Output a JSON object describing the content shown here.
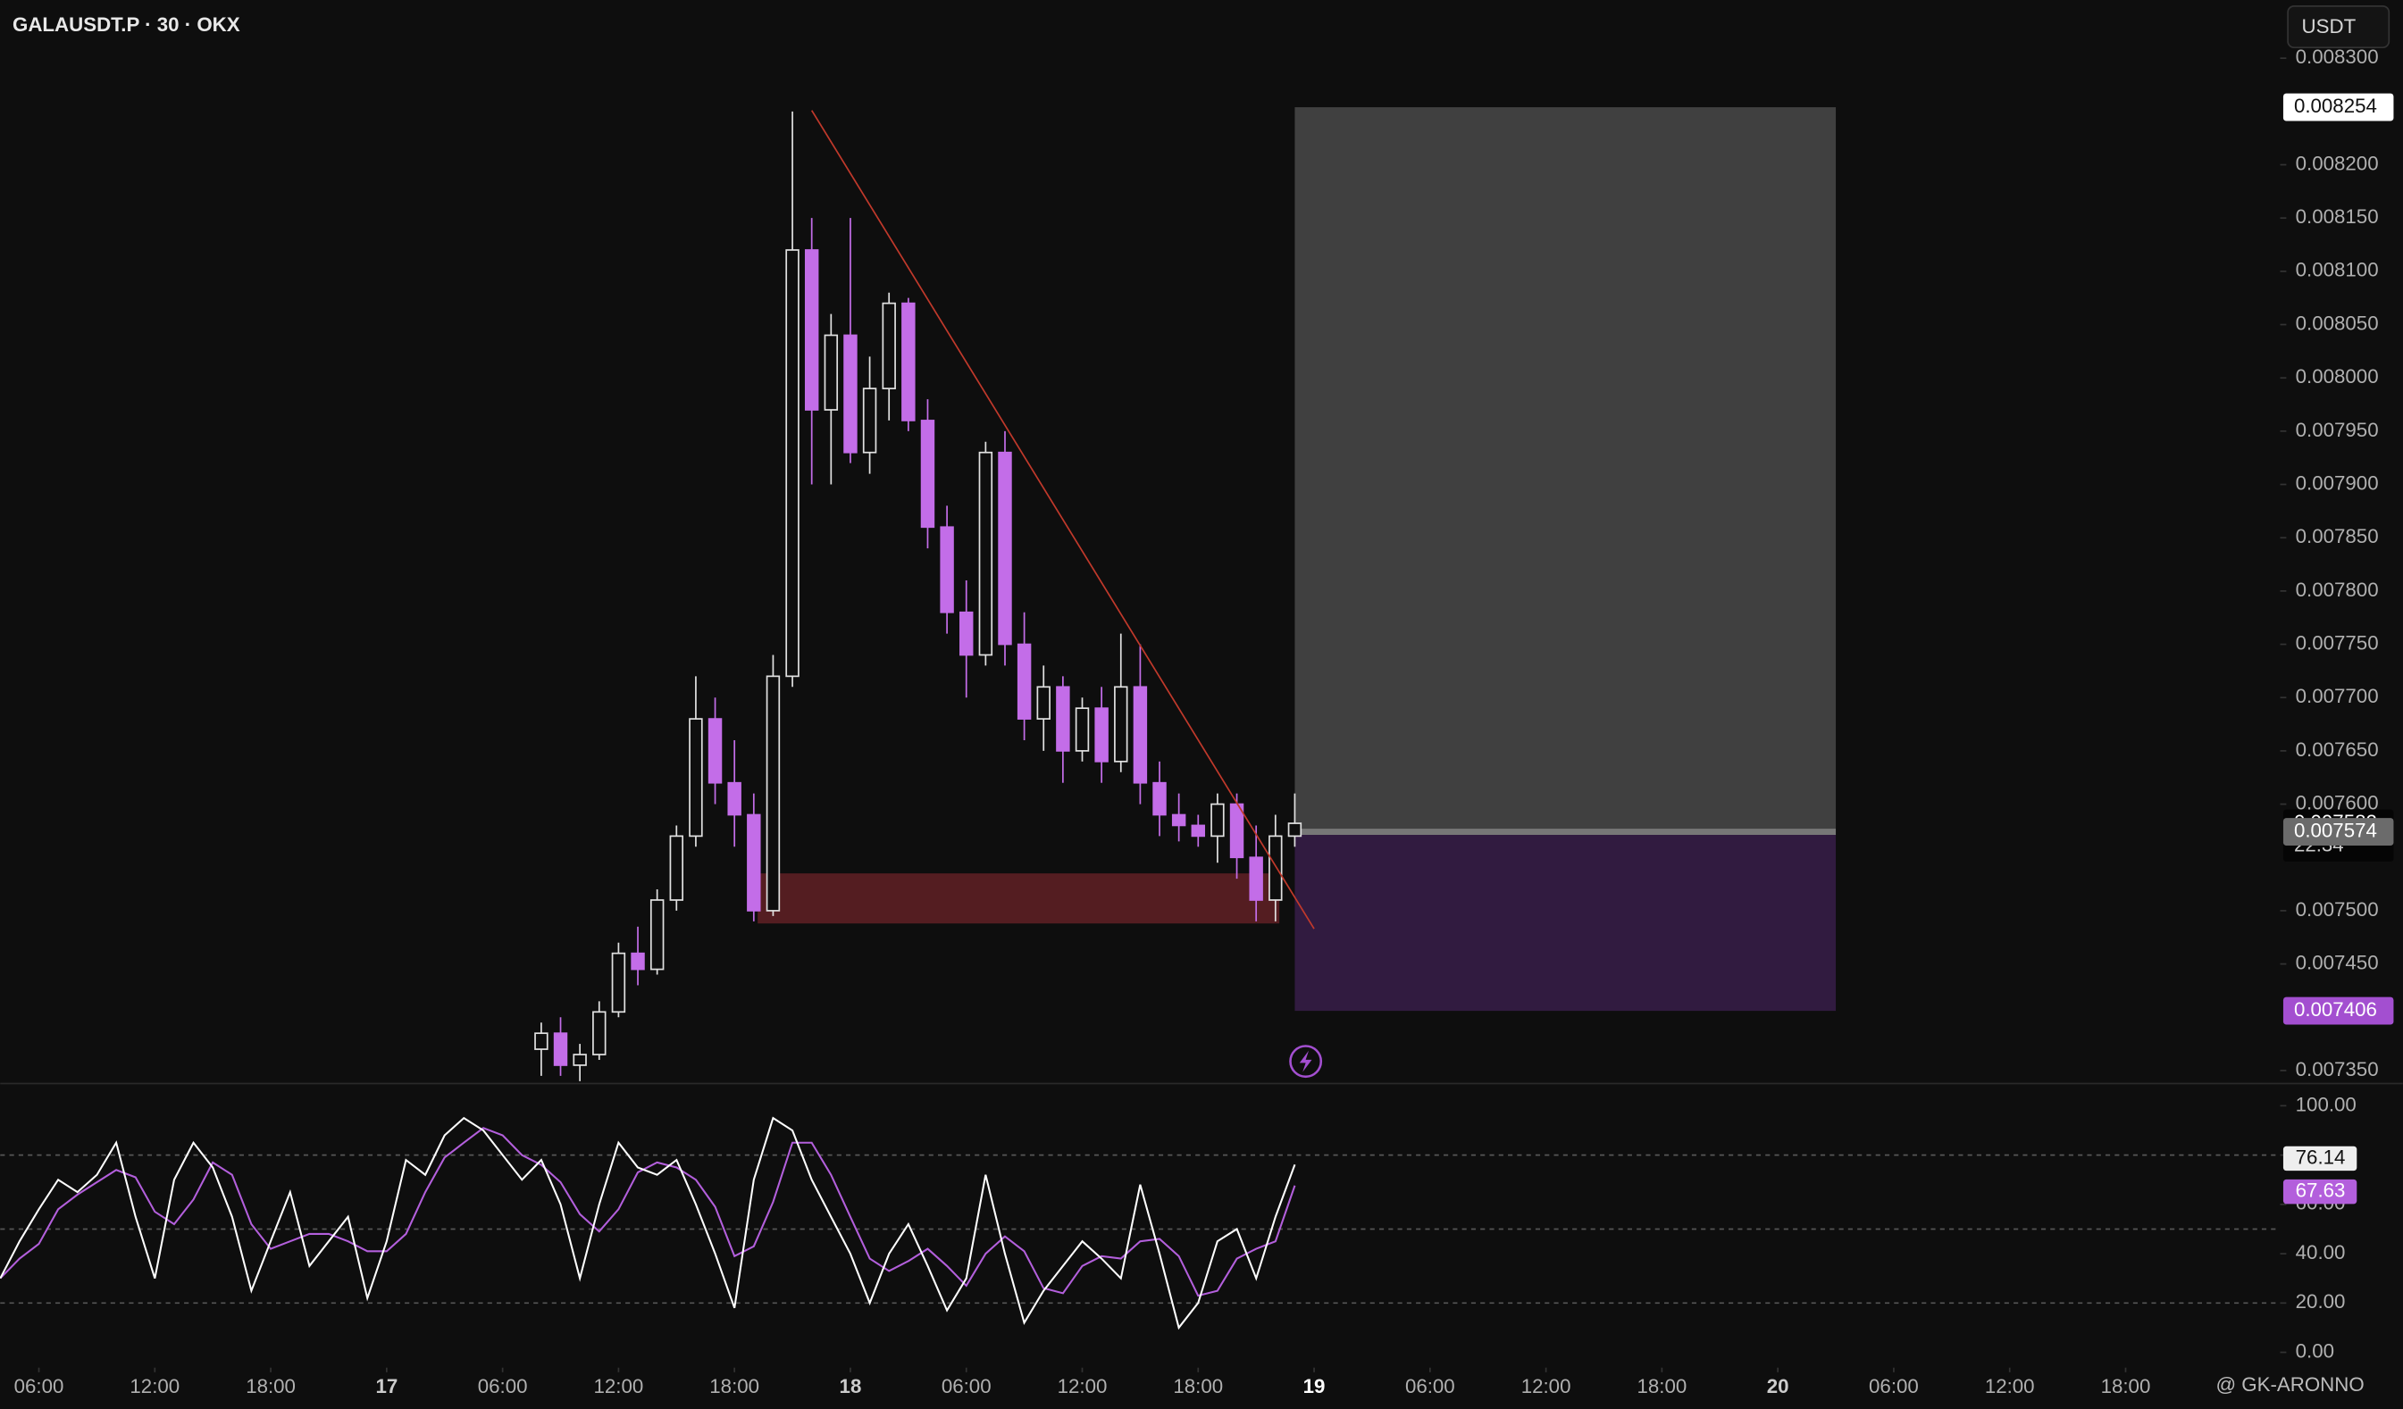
{
  "header": {
    "symbol": "GALAUSDT.P · 30 · OKX",
    "currency": "USDT",
    "watermark": "@ GK-ARONNO"
  },
  "chart_data": [
    {
      "type": "candlestick",
      "x": [
        26,
        27,
        28,
        29,
        30,
        31,
        32,
        33,
        34,
        35,
        36,
        37,
        38,
        39,
        40,
        41,
        42,
        43,
        44,
        45,
        46,
        47,
        48,
        49,
        50,
        51,
        52,
        53,
        54,
        55,
        56,
        57,
        58,
        59,
        60,
        61,
        62,
        63,
        64,
        65
      ],
      "open": [
        0.00737,
        0.007385,
        0.007355,
        0.007365,
        0.007405,
        0.00746,
        0.007445,
        0.00751,
        0.00757,
        0.00768,
        0.00762,
        0.00759,
        0.0075,
        0.00772,
        0.00812,
        0.00797,
        0.00804,
        0.00793,
        0.00799,
        0.00807,
        0.00796,
        0.00786,
        0.00778,
        0.00774,
        0.00793,
        0.00775,
        0.00768,
        0.00771,
        0.00765,
        0.00769,
        0.00764,
        0.00771,
        0.00762,
        0.00759,
        0.00758,
        0.00757,
        0.0076,
        0.00755,
        0.00751,
        0.00757
      ],
      "high": [
        0.007395,
        0.0074,
        0.007375,
        0.007415,
        0.00747,
        0.007485,
        0.00752,
        0.00758,
        0.00772,
        0.0077,
        0.00766,
        0.00761,
        0.00774,
        0.00825,
        0.00815,
        0.00806,
        0.00815,
        0.00802,
        0.00808,
        0.008075,
        0.00798,
        0.00788,
        0.00781,
        0.00794,
        0.00795,
        0.00778,
        0.00773,
        0.00772,
        0.0077,
        0.00771,
        0.00776,
        0.00775,
        0.00764,
        0.00761,
        0.00759,
        0.00761,
        0.00761,
        0.00758,
        0.00759,
        0.00761
      ],
      "low": [
        0.007345,
        0.007345,
        0.00734,
        0.00736,
        0.0074,
        0.00743,
        0.00744,
        0.0075,
        0.00756,
        0.0076,
        0.00756,
        0.00749,
        0.007495,
        0.00771,
        0.0079,
        0.0079,
        0.00792,
        0.00791,
        0.00796,
        0.00795,
        0.00784,
        0.00776,
        0.0077,
        0.00773,
        0.00773,
        0.00766,
        0.00765,
        0.00762,
        0.00764,
        0.00762,
        0.00763,
        0.0076,
        0.00757,
        0.007565,
        0.00756,
        0.007545,
        0.00753,
        0.00749,
        0.00749,
        0.00756
      ],
      "close": [
        0.007385,
        0.007355,
        0.007365,
        0.007405,
        0.00746,
        0.007445,
        0.00751,
        0.00757,
        0.00768,
        0.00762,
        0.00759,
        0.0075,
        0.00772,
        0.00812,
        0.00797,
        0.00804,
        0.00793,
        0.00799,
        0.00807,
        0.00796,
        0.00786,
        0.00778,
        0.00774,
        0.00793,
        0.00775,
        0.00768,
        0.00771,
        0.00765,
        0.00769,
        0.00764,
        0.00771,
        0.00762,
        0.00759,
        0.00758,
        0.00757,
        0.0076,
        0.00755,
        0.00751,
        0.00757,
        0.007582
      ],
      "up_color": "#e0e0e0",
      "down_color": "#c36de8",
      "xlim": [
        -2,
        116
      ],
      "xticks": [
        {
          "value": 0,
          "label": "06:00"
        },
        {
          "value": 6,
          "label": "12:00"
        },
        {
          "value": 12,
          "label": "18:00"
        },
        {
          "value": 18,
          "label": "17"
        },
        {
          "value": 24,
          "label": "06:00"
        },
        {
          "value": 30,
          "label": "12:00"
        },
        {
          "value": 36,
          "label": "18:00"
        },
        {
          "value": 42,
          "label": "18"
        },
        {
          "value": 48,
          "label": "06:00"
        },
        {
          "value": 54,
          "label": "12:00"
        },
        {
          "value": 60,
          "label": "18:00"
        },
        {
          "value": 66,
          "label": "19"
        },
        {
          "value": 72,
          "label": "06:00"
        },
        {
          "value": 78,
          "label": "12:00"
        },
        {
          "value": 84,
          "label": "18:00"
        },
        {
          "value": 90,
          "label": "20"
        },
        {
          "value": 96,
          "label": "06:00"
        },
        {
          "value": 102,
          "label": "12:00"
        },
        {
          "value": 108,
          "label": "18:00"
        }
      ],
      "ylim": [
        0.0073385,
        0.0083546
      ],
      "yticks": [
        {
          "value": 0.0083,
          "label": "0.008300"
        },
        {
          "value": 0.0082,
          "label": "0.008200"
        },
        {
          "value": 0.00815,
          "label": "0.008150"
        },
        {
          "value": 0.0081,
          "label": "0.008100"
        },
        {
          "value": 0.00805,
          "label": "0.008050"
        },
        {
          "value": 0.008,
          "label": "0.008000"
        },
        {
          "value": 0.00795,
          "label": "0.007950"
        },
        {
          "value": 0.0079,
          "label": "0.007900"
        },
        {
          "value": 0.00785,
          "label": "0.007850"
        },
        {
          "value": 0.0078,
          "label": "0.007800"
        },
        {
          "value": 0.00775,
          "label": "0.007750"
        },
        {
          "value": 0.0077,
          "label": "0.007700"
        },
        {
          "value": 0.00765,
          "label": "0.007650"
        },
        {
          "value": 0.0076,
          "label": "0.007600"
        },
        {
          "value": 0.0075,
          "label": "0.007500"
        },
        {
          "value": 0.00745,
          "label": "0.007450"
        },
        {
          "value": 0.00735,
          "label": "0.007350"
        }
      ],
      "countdown": "22:34",
      "position": {
        "start": 65,
        "end": 93,
        "target": 0.008254,
        "entry": 0.007574,
        "stop": 0.007406
      },
      "zone": {
        "start": 37.2,
        "end": 64.2,
        "top": 0.007535,
        "bottom": 0.007488
      },
      "trendline": {
        "x": [
          40,
          66
        ],
        "y": [
          0.008251,
          0.007483
        ]
      }
    },
    {
      "type": "line",
      "x": [
        -2,
        -1,
        0,
        1,
        2,
        3,
        4,
        5,
        6,
        7,
        8,
        9,
        10,
        11,
        12,
        13,
        14,
        15,
        16,
        17,
        18,
        19,
        20,
        21,
        22,
        23,
        24,
        25,
        26,
        27,
        28,
        29,
        30,
        31,
        32,
        33,
        34,
        35,
        36,
        37,
        38,
        39,
        40,
        41,
        42,
        43,
        44,
        45,
        46,
        47,
        48,
        49,
        50,
        51,
        52,
        53,
        54,
        55,
        56,
        57,
        58,
        59,
        60,
        61,
        62,
        63,
        64,
        65
      ],
      "series": [
        {
          "color": "#ffffff",
          "values": [
            30,
            45,
            58,
            70,
            65,
            72,
            85,
            55,
            30,
            70,
            85,
            75,
            55,
            25,
            45,
            65,
            35,
            45,
            55,
            22,
            45,
            78,
            72,
            88,
            95,
            90,
            80,
            70,
            78,
            60,
            30,
            60,
            85,
            75,
            72,
            78,
            60,
            40,
            18,
            70,
            95,
            90,
            70,
            55,
            40,
            20,
            40,
            52,
            35,
            17,
            30,
            72,
            40,
            12,
            25,
            35,
            45,
            38,
            30,
            68,
            40,
            10,
            20,
            45,
            50,
            30,
            55,
            76.14
          ]
        },
        {
          "color": "#b35fdc",
          "values": [
            30,
            38,
            44,
            58,
            64,
            69,
            74,
            71,
            57,
            52,
            62,
            77,
            72,
            52,
            42,
            45,
            48,
            48,
            45,
            41,
            41,
            48,
            65,
            79,
            85,
            91,
            88,
            80,
            76,
            69,
            56,
            49,
            58,
            73,
            77,
            75,
            70,
            59,
            39,
            43,
            61,
            85,
            85,
            72,
            55,
            38,
            33,
            37,
            42,
            35,
            27,
            40,
            47,
            41,
            26,
            24,
            35,
            39,
            38,
            45,
            46,
            39,
            23,
            25,
            38,
            42,
            45,
            67.63
          ]
        }
      ],
      "ylim": [
        0,
        100
      ],
      "yticks": [
        {
          "value": 0,
          "label": "0.00"
        },
        {
          "value": 20,
          "label": "20.00"
        },
        {
          "value": 40,
          "label": "40.00"
        },
        {
          "value": 60,
          "label": "60.00"
        },
        {
          "value": 80,
          "label": "80.00"
        },
        {
          "value": 100,
          "label": "100.00"
        }
      ],
      "levels": [
        80,
        50,
        20
      ]
    }
  ]
}
